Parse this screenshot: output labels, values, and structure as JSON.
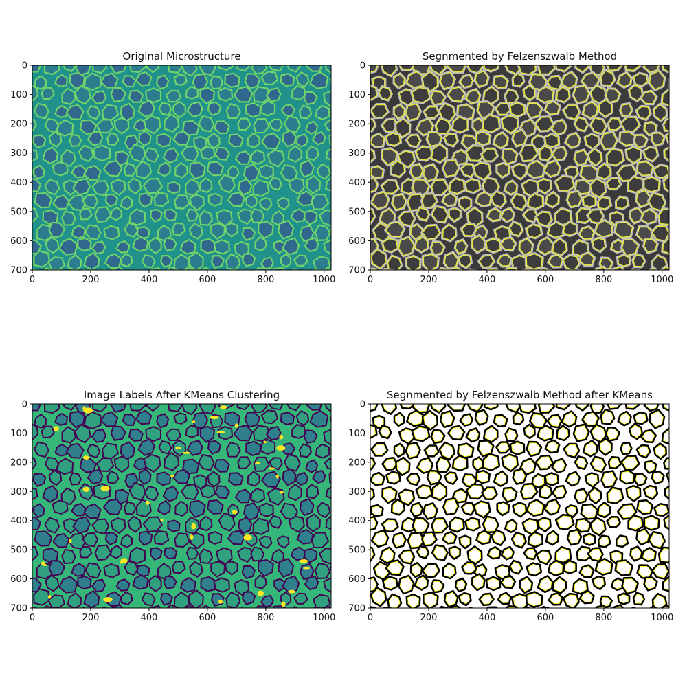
{
  "figure": {
    "background": "#ffffff",
    "panel_count": 4
  },
  "colors": {
    "viridis_dark": "#440154",
    "viridis_teal": "#21918c",
    "viridis_green": "#35b779",
    "viridis_yellow": "#fde725",
    "gray_dark": "#3a3a3a",
    "gray_light": "#cfcfcf",
    "boundary_yellow": "#ffff00",
    "black": "#000000",
    "white": "#ffffff"
  },
  "chart_data": [
    {
      "type": "heatmap",
      "title": "Original Microstructure",
      "colormap": "viridis",
      "content": "grayscale micrograph of cellular grains (bright grain boundaries)",
      "xlabel": "",
      "ylabel": "",
      "xlim": [
        0,
        1024
      ],
      "ylim": [
        700,
        0
      ],
      "xticks": [
        0,
        200,
        400,
        600,
        800,
        1000
      ],
      "yticks": [
        0,
        100,
        200,
        300,
        400,
        500,
        600,
        700
      ],
      "xtick_labels": [
        "0",
        "200",
        "400",
        "600",
        "800",
        "1000"
      ],
      "ytick_labels": [
        "0",
        "100",
        "200",
        "300",
        "400",
        "500",
        "600",
        "700"
      ]
    },
    {
      "type": "heatmap",
      "title": "Segnmented by Felzenszwalb Method",
      "colormap": "gray",
      "overlay": "yellow segment boundaries",
      "xlabel": "",
      "ylabel": "",
      "xlim": [
        0,
        1024
      ],
      "ylim": [
        700,
        0
      ],
      "xticks": [
        0,
        200,
        400,
        600,
        800,
        1000
      ],
      "yticks": [
        0,
        100,
        200,
        300,
        400,
        500,
        600,
        700
      ],
      "xtick_labels": [
        "0",
        "200",
        "400",
        "600",
        "800",
        "1000"
      ],
      "ytick_labels": [
        "0",
        "100",
        "200",
        "300",
        "400",
        "500",
        "600",
        "700"
      ]
    },
    {
      "type": "heatmap",
      "title": "Image Labels After KMeans Clustering",
      "colormap": "viridis",
      "content": "discrete cluster labels",
      "xlabel": "",
      "ylabel": "",
      "xlim": [
        0,
        1024
      ],
      "ylim": [
        700,
        0
      ],
      "xticks": [
        0,
        200,
        400,
        600,
        800,
        1000
      ],
      "yticks": [
        0,
        100,
        200,
        300,
        400,
        500,
        600,
        700
      ],
      "xtick_labels": [
        "0",
        "200",
        "400",
        "600",
        "800",
        "1000"
      ],
      "ytick_labels": [
        "0",
        "100",
        "200",
        "300",
        "400",
        "500",
        "600",
        "700"
      ]
    },
    {
      "type": "heatmap",
      "title": "Segnmented by Felzenszwalb Method after KMeans",
      "colormap": "binary",
      "overlay": "yellow segment boundaries",
      "xlabel": "",
      "ylabel": "",
      "xlim": [
        0,
        1024
      ],
      "ylim": [
        700,
        0
      ],
      "xticks": [
        0,
        200,
        400,
        600,
        800,
        1000
      ],
      "yticks": [
        0,
        100,
        200,
        300,
        400,
        500,
        600,
        700
      ],
      "xtick_labels": [
        "0",
        "200",
        "400",
        "600",
        "800",
        "1000"
      ],
      "ytick_labels": [
        "0",
        "100",
        "200",
        "300",
        "400",
        "500",
        "600",
        "700"
      ]
    }
  ]
}
